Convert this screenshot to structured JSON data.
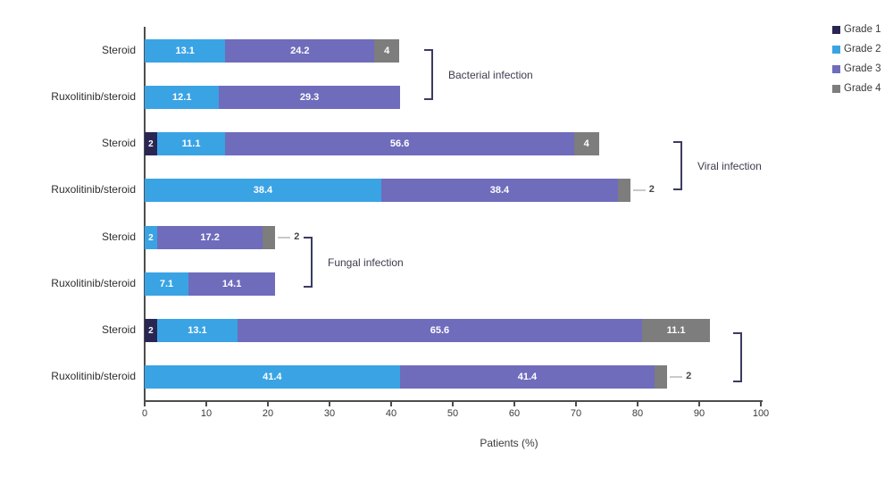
{
  "chart_data": {
    "type": "bar",
    "orientation": "horizontal",
    "xlabel": "Patients (%)",
    "xlim": [
      0,
      100
    ],
    "xticks": [
      0,
      10,
      20,
      30,
      40,
      50,
      60,
      70,
      80,
      90,
      100
    ],
    "grid": false,
    "legend_position": "top-right",
    "grades": [
      {
        "name": "Grade 1",
        "color": "#2A2653"
      },
      {
        "name": "Grade 2",
        "color": "#3AA3E4"
      },
      {
        "name": "Grade 3",
        "color": "#6F6CBC"
      },
      {
        "name": "Grade 4",
        "color": "#7D7D7D"
      }
    ],
    "groups": [
      {
        "label": "Bacterial infection",
        "rows": [
          0,
          1
        ]
      },
      {
        "label": "Viral infection",
        "rows": [
          2,
          3
        ]
      },
      {
        "label": "Fungal infection",
        "rows": [
          4,
          5
        ]
      },
      {
        "label": "",
        "rows": [
          6,
          7
        ]
      }
    ],
    "rows": [
      {
        "category": "Steroid",
        "segments": [
          {
            "grade": 2,
            "value": 13.1,
            "label": "13.1"
          },
          {
            "grade": 3,
            "value": 24.2,
            "label": "24.2"
          },
          {
            "grade": 4,
            "value": 4,
            "label": "4"
          }
        ]
      },
      {
        "category": "Ruxolitinib/steroid",
        "segments": [
          {
            "grade": 2,
            "value": 12.1,
            "label": "12.1"
          },
          {
            "grade": 3,
            "value": 29.3,
            "label": "29.3"
          }
        ]
      },
      {
        "category": "Steroid",
        "segments": [
          {
            "grade": 1,
            "value": 2,
            "label": "2"
          },
          {
            "grade": 2,
            "value": 11.1,
            "label": "11.1"
          },
          {
            "grade": 3,
            "value": 56.6,
            "label": "56.6"
          },
          {
            "grade": 4,
            "value": 4,
            "label": "4"
          }
        ]
      },
      {
        "category": "Ruxolitinib/steroid",
        "segments": [
          {
            "grade": 2,
            "value": 38.4,
            "label": "38.4"
          },
          {
            "grade": 3,
            "value": 38.4,
            "label": "38.4"
          },
          {
            "grade": 4,
            "value": 2,
            "label": "2",
            "label_outside": true
          }
        ]
      },
      {
        "category": "Steroid",
        "segments": [
          {
            "grade": 2,
            "value": 2,
            "label": "2"
          },
          {
            "grade": 3,
            "value": 17.2,
            "label": "17.2"
          },
          {
            "grade": 4,
            "value": 2,
            "label": "2",
            "label_outside": true
          }
        ]
      },
      {
        "category": "Ruxolitinib/steroid",
        "segments": [
          {
            "grade": 2,
            "value": 7.1,
            "label": "7.1"
          },
          {
            "grade": 3,
            "value": 14.1,
            "label": "14.1"
          }
        ]
      },
      {
        "category": "Steroid",
        "segments": [
          {
            "grade": 1,
            "value": 2,
            "label": "2"
          },
          {
            "grade": 2,
            "value": 13.1,
            "label": "13.1"
          },
          {
            "grade": 3,
            "value": 65.6,
            "label": "65.6"
          },
          {
            "grade": 4,
            "value": 11.1,
            "label": "11.1"
          }
        ]
      },
      {
        "category": "Ruxolitinib/steroid",
        "segments": [
          {
            "grade": 2,
            "value": 41.4,
            "label": "41.4"
          },
          {
            "grade": 3,
            "value": 41.4,
            "label": "41.4"
          },
          {
            "grade": 4,
            "value": 2,
            "label": "2",
            "label_outside": true
          }
        ]
      }
    ]
  }
}
